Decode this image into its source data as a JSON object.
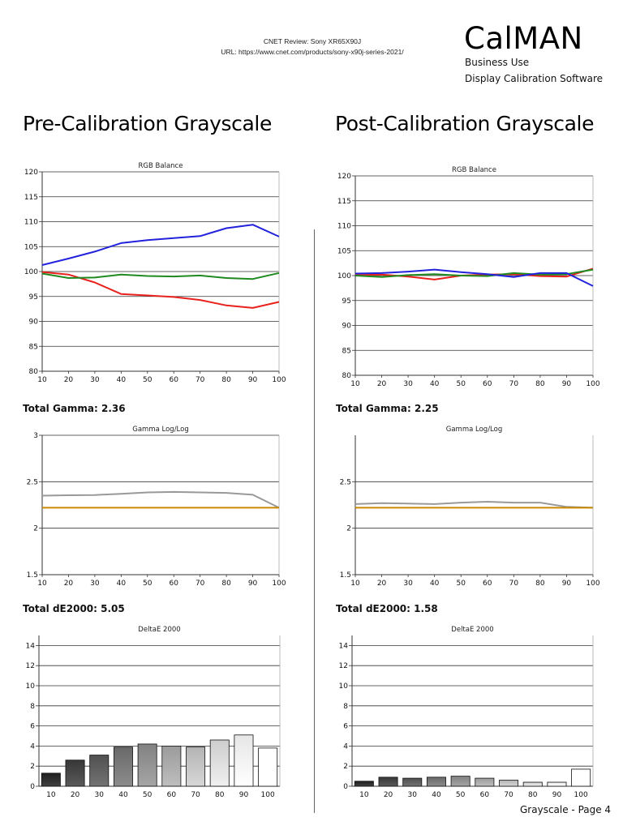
{
  "header": {
    "review": "CNET Review: Sony XR65X90J",
    "url": "URL: https://www.cnet.com/products/sony-x90j-series-2021/"
  },
  "logo": {
    "title": "CalMAN",
    "line1": "Business Use",
    "line2": "Display Calibration Software"
  },
  "sections": {
    "pre": "Pre-Calibration Grayscale",
    "post": "Post-Calibration Grayscale"
  },
  "stats": {
    "pre_gamma": "Total Gamma: 2.36",
    "post_gamma": "Total Gamma: 2.25",
    "pre_de": "Total dE2000: 5.05",
    "post_de": "Total dE2000: 1.58"
  },
  "footer": "Grayscale - Page 4",
  "colors": {
    "red": "#e8211d",
    "green": "#1f8a1f",
    "blue": "#2222dd",
    "gamma": "#999999",
    "target": "#c88a00"
  },
  "chart_data": [
    {
      "id": "pre-rgb",
      "type": "line",
      "title": "RGB Balance",
      "x": [
        10,
        20,
        30,
        40,
        50,
        60,
        70,
        80,
        90,
        100
      ],
      "ylim": [
        80,
        120
      ],
      "yticks": [
        80,
        85,
        90,
        95,
        100,
        105,
        110,
        115,
        120
      ],
      "series": [
        {
          "color": "#e8211d",
          "values": [
            99.9,
            99.4,
            97.8,
            95.5,
            95.2,
            94.9,
            94.3,
            93.2,
            92.7,
            93.9
          ]
        },
        {
          "color": "#1f8a1f",
          "values": [
            99.6,
            98.7,
            98.8,
            99.4,
            99.1,
            99.0,
            99.2,
            98.7,
            98.5,
            99.7
          ]
        },
        {
          "color": "#2222dd",
          "values": [
            101.3,
            102.6,
            104.0,
            105.7,
            106.3,
            106.7,
            107.1,
            108.7,
            109.4,
            107.0
          ]
        }
      ]
    },
    {
      "id": "post-rgb",
      "type": "line",
      "title": "RGB Balance",
      "x": [
        10,
        20,
        30,
        40,
        50,
        60,
        70,
        80,
        90,
        100
      ],
      "ylim": [
        80,
        120
      ],
      "yticks": [
        80,
        85,
        90,
        95,
        100,
        105,
        110,
        115,
        120
      ],
      "series": [
        {
          "color": "#e8211d",
          "values": [
            100.1,
            100.2,
            99.8,
            99.2,
            100.0,
            100.2,
            100.3,
            99.9,
            99.8,
            101.4
          ]
        },
        {
          "color": "#1f8a1f",
          "values": [
            100.0,
            99.7,
            100.1,
            100.3,
            100.0,
            99.9,
            100.5,
            100.2,
            100.3,
            101.2
          ]
        },
        {
          "color": "#2222dd",
          "values": [
            100.4,
            100.5,
            100.8,
            101.2,
            100.7,
            100.3,
            99.7,
            100.5,
            100.5,
            97.9
          ]
        }
      ]
    },
    {
      "id": "pre-gamma",
      "type": "line",
      "title": "Gamma Log/Log",
      "x": [
        10,
        20,
        30,
        40,
        50,
        60,
        70,
        80,
        90,
        100
      ],
      "ylim": [
        1.5,
        3
      ],
      "yticks": [
        1.5,
        2,
        2.5,
        3
      ],
      "series": [
        {
          "color": "#999999",
          "values": [
            2.35,
            2.355,
            2.357,
            2.37,
            2.385,
            2.39,
            2.385,
            2.38,
            2.36,
            2.22
          ]
        },
        {
          "color": "#c88a00",
          "values": [
            2.22,
            2.22,
            2.22,
            2.22,
            2.22,
            2.22,
            2.22,
            2.22,
            2.22,
            2.22
          ]
        }
      ]
    },
    {
      "id": "post-gamma",
      "type": "line",
      "title": "Gamma Log/Log",
      "x": [
        10,
        20,
        30,
        40,
        50,
        60,
        70,
        80,
        90,
        100
      ],
      "ylim": [
        1.5,
        3
      ],
      "yticks": [
        1.5,
        2,
        2.5
      ],
      "series": [
        {
          "color": "#999999",
          "values": [
            2.26,
            2.27,
            2.265,
            2.26,
            2.275,
            2.285,
            2.275,
            2.275,
            2.23,
            2.22
          ]
        },
        {
          "color": "#c88a00",
          "values": [
            2.22,
            2.22,
            2.22,
            2.22,
            2.22,
            2.22,
            2.22,
            2.22,
            2.22,
            2.22
          ]
        }
      ]
    },
    {
      "id": "pre-de",
      "type": "bar",
      "title": "DeltaE 2000",
      "categories": [
        "10",
        "20",
        "30",
        "40",
        "50",
        "60",
        "70",
        "80",
        "90",
        "100"
      ],
      "values": [
        1.3,
        2.6,
        3.1,
        3.9,
        4.2,
        4.0,
        3.9,
        4.6,
        5.1,
        3.8
      ],
      "ylim": [
        0,
        15
      ],
      "yticks": [
        0,
        2,
        4,
        6,
        8,
        10,
        12,
        14
      ]
    },
    {
      "id": "post-de",
      "type": "bar",
      "title": "DeltaE 2000",
      "categories": [
        "10",
        "20",
        "30",
        "40",
        "50",
        "60",
        "70",
        "80",
        "90",
        "100"
      ],
      "values": [
        0.5,
        0.9,
        0.8,
        0.9,
        1.0,
        0.8,
        0.6,
        0.4,
        0.4,
        1.7
      ],
      "ylim": [
        0,
        15
      ],
      "yticks": [
        0,
        2,
        4,
        6,
        8,
        10,
        12,
        14
      ]
    }
  ]
}
